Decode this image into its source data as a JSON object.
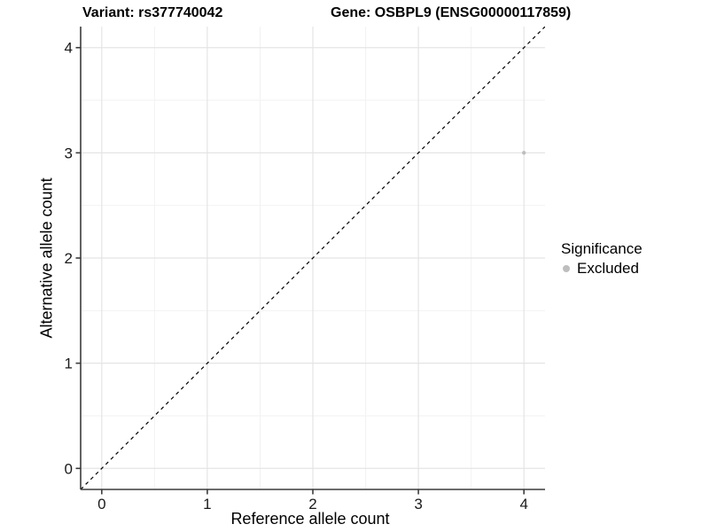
{
  "header": {
    "variant": "Variant: rs377740042",
    "gene": "Gene: OSBPL9 (ENSG00000117859)"
  },
  "legend": {
    "title": "Significance",
    "items": [
      {
        "label": "Excluded",
        "color": "#bebebe",
        "marker": "circle"
      }
    ]
  },
  "chart_data": {
    "type": "scatter",
    "x": {
      "label": "Reference allele count",
      "ticks": [
        0,
        1,
        2,
        3,
        4
      ],
      "minor_ticks": [
        0.5,
        1.5,
        2.5,
        3.5
      ],
      "range": [
        -0.2,
        4.2
      ]
    },
    "y": {
      "label": "Alternative allele count",
      "ticks": [
        0,
        1,
        2,
        3,
        4
      ],
      "minor_ticks": [
        0.5,
        1.5,
        2.5,
        3.5
      ],
      "range": [
        -0.2,
        4.2
      ]
    },
    "series": [
      {
        "name": "Excluded",
        "color": "#bebebe",
        "points": [
          {
            "x": 4,
            "y": 3
          }
        ]
      }
    ],
    "point_radius": 2.2,
    "reference_line": {
      "style": "dashed",
      "slope": 1,
      "intercept": 0,
      "color": "#000000"
    },
    "grid": "major+minor",
    "legend_position": "right"
  },
  "colors": {
    "point": "#bebebe",
    "grid_major": "#e4e4e4",
    "grid_minor": "#f2f2f2",
    "axis_line": "#3c3c3c",
    "tick_text": "#1a1a1a",
    "reference_line": "#000000",
    "background": "#ffffff"
  }
}
